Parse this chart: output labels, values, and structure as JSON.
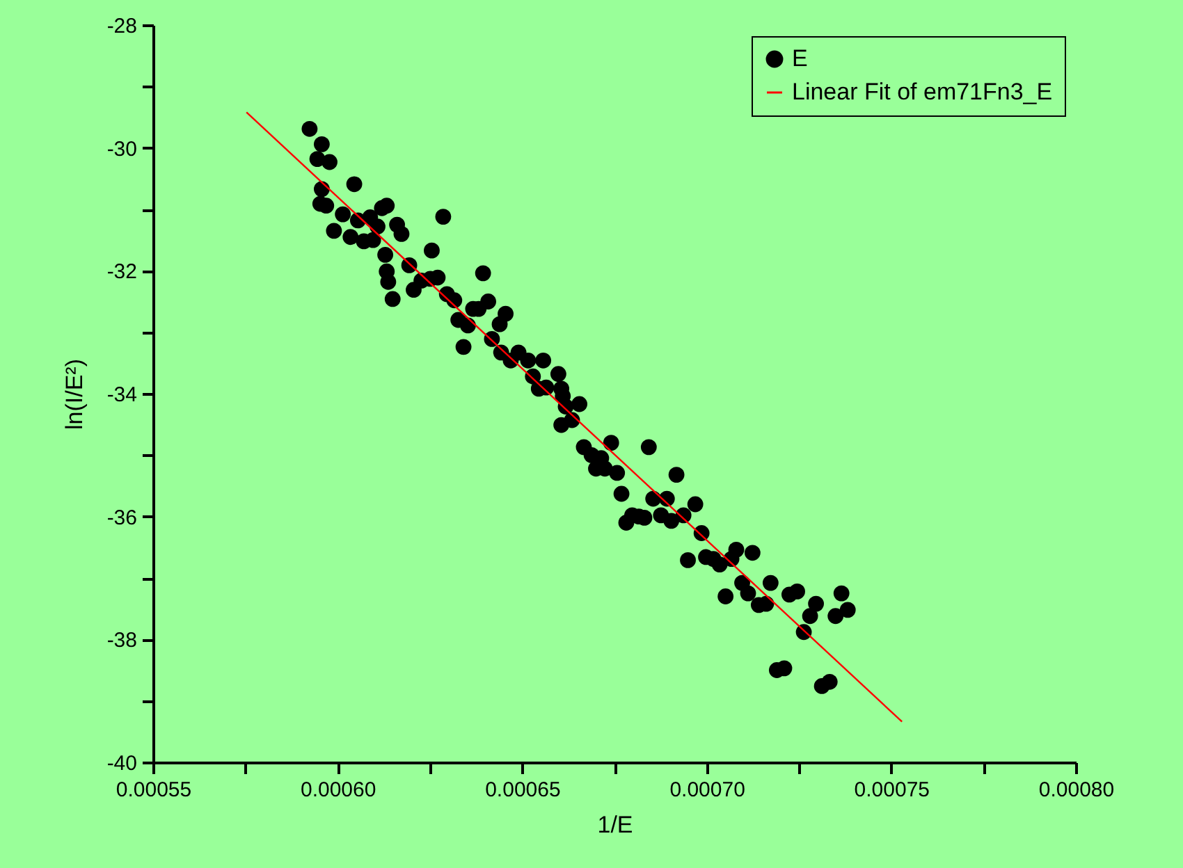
{
  "chart_data": {
    "type": "scatter",
    "xlabel": "1/E",
    "ylabel": "ln(I/E²)",
    "legend": "top right",
    "grid": false,
    "xlim": [
      0.00055,
      0.0008
    ],
    "ylim": [
      -40,
      -28
    ],
    "xticks": [
      0.00055,
      {
        "value": 0.000575,
        "label": null
      },
      {
        "value": 0.0006,
        "label": "0.00060"
      },
      {
        "value": 0.000625,
        "label": null
      },
      0.00065,
      {
        "value": 0.000675,
        "label": null
      },
      {
        "value": 0.0007,
        "label": "0.00070"
      },
      {
        "value": 0.000725,
        "label": null
      },
      0.00075,
      {
        "value": 0.000775,
        "label": null
      },
      {
        "value": 0.0008,
        "label": "0.00080"
      }
    ],
    "yticks": [
      -40,
      {
        "value": -39,
        "label": null
      },
      -38,
      {
        "value": -37,
        "label": null
      },
      -36,
      {
        "value": -35,
        "label": null
      },
      -34,
      {
        "value": -33,
        "label": null
      },
      -32,
      {
        "value": -31,
        "label": null
      },
      -30,
      {
        "value": -29,
        "label": null
      },
      -28
    ],
    "series": [
      {
        "name": "E",
        "marker": "circle",
        "color": "#000000",
        "x": [
          0.0005924,
          0.0005945,
          0.0005957,
          0.0005978,
          0.0005957,
          0.0005953,
          0.0005969,
          0.000599,
          0.0006014,
          0.0006035,
          0.0006045,
          0.0006055,
          0.0006071,
          0.0006088,
          0.0006096,
          0.0006108,
          0.000612,
          0.0006133,
          0.0006129,
          0.0006133,
          0.0006137,
          0.0006149,
          0.0006161,
          0.0006173,
          0.0006194,
          0.0006206,
          0.0006227,
          0.0006255,
          0.0006251,
          0.0006271,
          0.0006286,
          0.0006296,
          0.0006316,
          0.0006327,
          0.0006341,
          0.0006353,
          0.0006367,
          0.0006382,
          0.0006394,
          0.0006408,
          0.0006418,
          0.0006439,
          0.0006455,
          0.0006443,
          0.0006469,
          0.000649,
          0.0006516,
          0.0006529,
          0.0006545,
          0.0006557,
          0.0006565,
          0.0006598,
          0.0006606,
          0.000661,
          0.0006618,
          0.0006606,
          0.0006635,
          0.0006655,
          0.0006667,
          0.0006688,
          0.00067,
          0.0006714,
          0.0006724,
          0.0006741,
          0.0006757,
          0.0006769,
          0.0006782,
          0.0006798,
          0.0006816,
          0.0006831,
          0.0006843,
          0.0006855,
          0.0006876,
          0.0006892,
          0.0006904,
          0.0006918,
          0.0006937,
          0.0006949,
          0.0006969,
          0.0006986,
          0.0006998,
          0.0007018,
          0.0007035,
          0.0007051,
          0.0007067,
          0.000708,
          0.0007096,
          0.0007112,
          0.0007124,
          0.0007141,
          0.0007161,
          0.0007173,
          0.000719,
          0.000721,
          0.0007224,
          0.0007245,
          0.0007263,
          0.000728,
          0.0007296,
          0.0007312,
          0.0007333,
          0.0007349,
          0.0007365,
          0.0007382
        ],
        "values": [
          -29.69,
          -30.18,
          -29.94,
          -30.23,
          -30.67,
          -30.91,
          -30.94,
          -31.35,
          -31.08,
          -31.45,
          -30.59,
          -31.18,
          -31.52,
          -31.13,
          -31.5,
          -31.28,
          -30.98,
          -30.94,
          -31.74,
          -32.01,
          -32.18,
          -32.46,
          -31.25,
          -31.4,
          -31.91,
          -32.31,
          -32.16,
          -31.67,
          -32.13,
          -32.11,
          -31.12,
          -32.38,
          -32.48,
          -32.8,
          -33.24,
          -32.89,
          -32.62,
          -32.62,
          -32.04,
          -32.5,
          -33.11,
          -32.87,
          -32.7,
          -33.33,
          -33.46,
          -33.33,
          -33.46,
          -33.72,
          -33.92,
          -33.46,
          -33.9,
          -33.68,
          -33.92,
          -34.04,
          -34.21,
          -34.51,
          -34.43,
          -34.17,
          -34.87,
          -35.0,
          -35.22,
          -35.05,
          -35.22,
          -34.8,
          -35.29,
          -35.63,
          -36.1,
          -35.98,
          -36.0,
          -36.02,
          -34.87,
          -35.71,
          -35.98,
          -35.71,
          -36.07,
          -35.32,
          -35.98,
          -36.71,
          -35.8,
          -36.27,
          -36.66,
          -36.69,
          -36.78,
          -37.3,
          -36.69,
          -36.54,
          -37.08,
          -37.25,
          -36.59,
          -37.44,
          -37.42,
          -37.08,
          -38.5,
          -38.47,
          -37.27,
          -37.22,
          -37.88,
          -37.62,
          -37.42,
          -38.76,
          -38.69,
          -37.62,
          -37.25,
          -37.52
        ]
      },
      {
        "name": "Linear Fit of em71Fn3_E",
        "type": "line",
        "color": "#ff0000",
        "x": [
          0.0005753,
          0.0007529
        ],
        "values": [
          -29.42,
          -39.34
        ]
      }
    ]
  }
}
